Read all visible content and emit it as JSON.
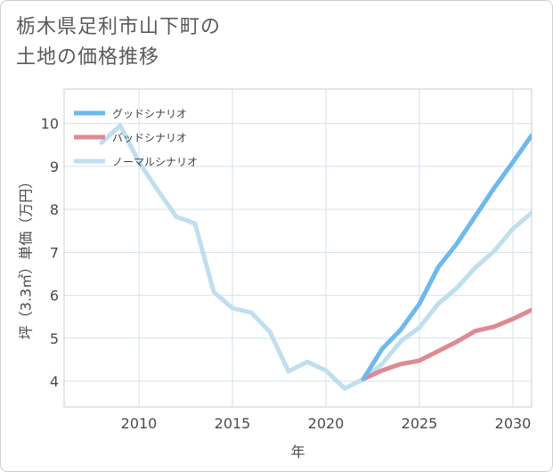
{
  "title_lines": [
    "栃木県足利市山下町の",
    "土地の価格推移"
  ],
  "chart_data": {
    "type": "line",
    "xlabel": "年",
    "ylabel": "坪（3.3㎡）単価（万円）",
    "xlim": [
      2006,
      2031
    ],
    "ylim": [
      3.4,
      10.8
    ],
    "xticks": [
      2010,
      2015,
      2020,
      2025,
      2030
    ],
    "yticks": [
      4,
      5,
      6,
      7,
      8,
      9,
      10
    ],
    "grid": true,
    "legend_position": "top-left",
    "series": [
      {
        "name": "グッドシナリオ",
        "color": "#6fb8ec",
        "x": [
          2022,
          2023,
          2024,
          2025,
          2026,
          2027,
          2028,
          2029,
          2030,
          2031
        ],
        "y": [
          4.05,
          4.75,
          5.2,
          5.8,
          6.65,
          7.2,
          7.85,
          8.5,
          9.1,
          9.72
        ]
      },
      {
        "name": "バッドシナリオ",
        "color": "#dd8a92",
        "x": [
          2022,
          2023,
          2024,
          2025,
          2026,
          2027,
          2028,
          2029,
          2030,
          2031
        ],
        "y": [
          4.05,
          4.25,
          4.4,
          4.48,
          4.7,
          4.92,
          5.17,
          5.27,
          5.45,
          5.66
        ]
      },
      {
        "name": "ノーマルシナリオ",
        "color": "#bfdfee",
        "x": [
          2008,
          2009,
          2010,
          2011,
          2012,
          2013,
          2014,
          2015,
          2016,
          2017,
          2018,
          2019,
          2020,
          2021,
          2022,
          2023,
          2024,
          2025,
          2026,
          2027,
          2028,
          2029,
          2030,
          2031
        ],
        "y": [
          9.55,
          9.95,
          9.1,
          8.45,
          7.83,
          7.67,
          6.08,
          5.7,
          5.6,
          5.15,
          4.23,
          4.45,
          4.25,
          3.83,
          4.05,
          4.4,
          4.93,
          5.25,
          5.8,
          6.17,
          6.65,
          7.03,
          7.55,
          7.92
        ]
      }
    ]
  }
}
